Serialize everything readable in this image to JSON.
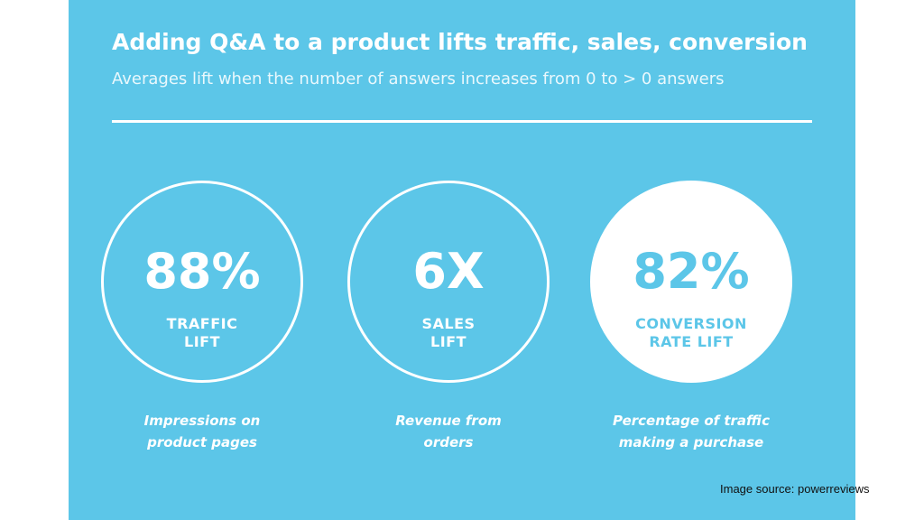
{
  "infographic": {
    "title": "Adding Q&A to a product lifts traffic, sales, conversion",
    "subtitle": "Averages lift when the number of answers increases from 0 to > 0 answers",
    "background_color": "#5cc6e8",
    "stats": [
      {
        "value": "88%",
        "label_line1": "TRAFFIC",
        "label_line2": "LIFT",
        "caption_line1": "Impressions on",
        "caption_line2": "product pages",
        "style": "outline"
      },
      {
        "value": "6X",
        "label_line1": "SALES",
        "label_line2": "LIFT",
        "caption_line1": "Revenue from",
        "caption_line2": "orders",
        "style": "outline"
      },
      {
        "value": "82%",
        "label_line1": "CONVERSION",
        "label_line2": "RATE LIFT",
        "caption_line1": "Percentage of traffic",
        "caption_line2": "making a purchase",
        "style": "filled"
      }
    ]
  },
  "source_text": "Image source: powerreviews"
}
